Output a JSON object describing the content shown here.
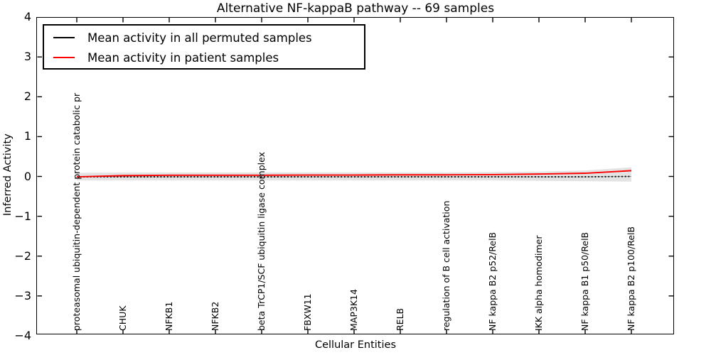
{
  "title": "Alternative NF-kappaB pathway -- 69 samples",
  "legend": {
    "entries": [
      {
        "label": "Mean activity in all permuted samples",
        "color": "#000000"
      },
      {
        "label": "Mean activity in patient samples",
        "color": "#ff0000"
      }
    ],
    "position": "upper left"
  },
  "chart_data": {
    "type": "line",
    "title": "Alternative NF-kappaB pathway -- 69 samples",
    "xlabel": "Cellular Entities",
    "ylabel": "Inferred Activity",
    "ylim": [
      -4,
      4
    ],
    "ytick_labels": [
      "4",
      "3",
      "2",
      "1",
      "0",
      "−1",
      "−2",
      "−3",
      "−4"
    ],
    "ytick_values": [
      4,
      3,
      2,
      1,
      0,
      -1,
      -2,
      -3,
      -4
    ],
    "grid": false,
    "categories": [
      "proteasomal ubiquitin-dependent protein catabolic pr",
      "CHUK",
      "NFKB1",
      "NFKB2",
      "beta TrCP1/SCF ubiquitin ligase complex",
      "FBXW11",
      "MAP3K14",
      "RELB",
      "regulation of B cell activation",
      "NF kappa B2 p52/RelB",
      "IKK alpha homodimer",
      "NF kappa B1 p50/RelB",
      "NF kappa B2 p100/RelB"
    ],
    "series": [
      {
        "name": "Mean activity in all permuted samples",
        "color": "#000000",
        "style": "dotted",
        "values": [
          -0.01,
          -0.01,
          -0.01,
          -0.01,
          -0.01,
          -0.01,
          -0.01,
          -0.01,
          -0.01,
          -0.01,
          -0.01,
          -0.01,
          0.0
        ]
      },
      {
        "name": "Mean activity in patient samples",
        "color": "#ff0000",
        "style": "solid",
        "values": [
          -0.01,
          0.02,
          0.03,
          0.03,
          0.03,
          0.035,
          0.035,
          0.04,
          0.04,
          0.045,
          0.06,
          0.08,
          0.145
        ]
      }
    ],
    "band": {
      "color": "#e0e0e0",
      "upper": [
        0.09,
        0.1,
        0.1,
        0.1,
        0.1,
        0.1,
        0.1,
        0.1,
        0.1,
        0.11,
        0.12,
        0.15,
        0.23
      ],
      "lower": [
        -0.1,
        -0.1,
        -0.1,
        -0.1,
        -0.1,
        -0.1,
        -0.1,
        -0.1,
        -0.1,
        -0.1,
        -0.11,
        -0.12,
        -0.13
      ]
    }
  }
}
